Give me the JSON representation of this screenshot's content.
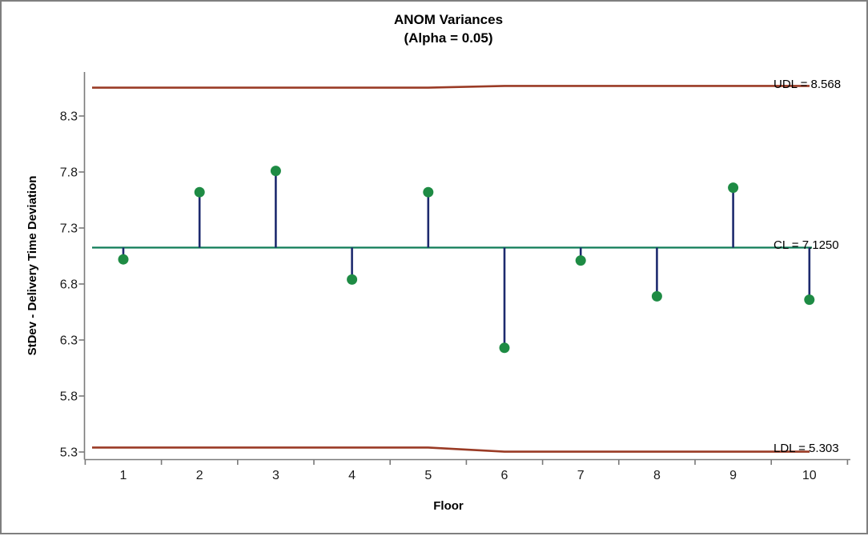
{
  "window": {
    "background_color": "#ffffff",
    "border_color": "#7f7f7f"
  },
  "chart_data": {
    "type": "scatter",
    "variant": "anom-variances-stem-plot",
    "title": "ANOM Variances",
    "subtitle": "(Alpha = 0.05)",
    "xlabel": "Floor",
    "ylabel": "StDev - Delivery Time Deviation",
    "categories": [
      1,
      2,
      3,
      4,
      5,
      6,
      7,
      8,
      9,
      10
    ],
    "values": [
      7.02,
      7.62,
      7.81,
      6.84,
      7.62,
      6.23,
      7.01,
      6.69,
      7.66,
      6.66
    ],
    "y_ticks": [
      5.3,
      5.8,
      6.3,
      6.8,
      7.3,
      7.8,
      8.3
    ],
    "ylim": [
      5.05,
      8.75
    ],
    "grid": "off",
    "legend": "none",
    "center_line": {
      "value": 7.125,
      "label": "CL = 7.1250"
    },
    "upper_limit": {
      "label": "UDL = 8.568",
      "segments": [
        {
          "floors": "1-5",
          "value": 8.553
        },
        {
          "floors": "6-10",
          "value": 8.568
        }
      ]
    },
    "lower_limit": {
      "label": "LDL = 5.303",
      "segments": [
        {
          "floors": "1-5",
          "value": 5.34
        },
        {
          "floors": "6-10",
          "value": 5.303
        }
      ]
    },
    "colors": {
      "limit_line": "#9a3b25",
      "center_line": "#0e7c57",
      "stem": "#1d2a6e",
      "point": "#1e8b44",
      "axis_line": "#7a7a7a",
      "tick_label": "#1a1a1a",
      "text": "#000000"
    }
  }
}
